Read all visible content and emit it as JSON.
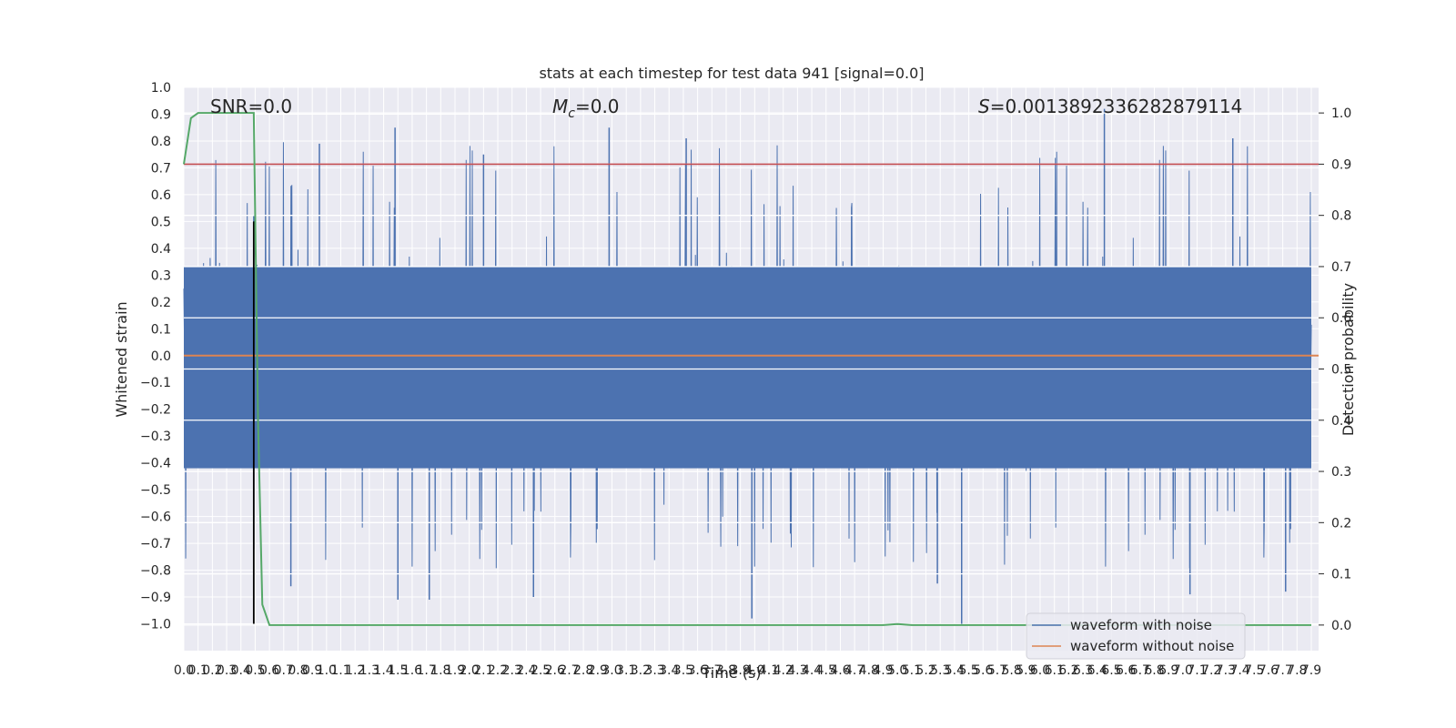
{
  "chart_data": {
    "type": "line",
    "title": "stats at each timestep for test data 941 [signal=0.0]",
    "xlabel": "Time (s)",
    "ylabel_left": "Whitened strain",
    "ylabel_right": "Detection probability",
    "annotations": {
      "snr": "SNR=0.0",
      "mc_symbol": "M",
      "mc_sub": "c",
      "mc_value": "=0.0",
      "s_symbol": "S",
      "s_value": "=0.0013892336282879114"
    },
    "xlim": [
      0.0,
      7.9
    ],
    "ylim_left": [
      -1.1,
      1.0
    ],
    "ylim_right": [
      -0.05,
      1.05
    ],
    "x_ticks": [
      0.0,
      0.1,
      0.2,
      0.3,
      0.4,
      0.5,
      0.6,
      0.7,
      0.8,
      0.9,
      1.0,
      1.1,
      1.2,
      1.3,
      1.4,
      1.5,
      1.6,
      1.7,
      1.8,
      1.9,
      2.0,
      2.1,
      2.2,
      2.3,
      2.4,
      2.5,
      2.6,
      2.7,
      2.8,
      2.9,
      3.0,
      3.1,
      3.2,
      3.3,
      3.4,
      3.5,
      3.6,
      3.7,
      3.8,
      3.9,
      4.0,
      4.1,
      4.2,
      4.3,
      4.4,
      4.5,
      4.6,
      4.7,
      4.8,
      4.9,
      5.0,
      5.1,
      5.2,
      5.3,
      5.4,
      5.5,
      5.6,
      5.7,
      5.8,
      5.9,
      6.0,
      6.1,
      6.2,
      6.3,
      6.4,
      6.5,
      6.6,
      6.7,
      6.8,
      6.9,
      7.0,
      7.1,
      7.2,
      7.3,
      7.4,
      7.5,
      7.6,
      7.7,
      7.8,
      7.9
    ],
    "y_ticks_left": [
      "1.0",
      "0.9",
      "0.8",
      "0.7",
      "0.6",
      "0.5",
      "0.4",
      "0.3",
      "0.2",
      "0.1",
      "0.0",
      "−0.1",
      "−0.2",
      "−0.3",
      "−0.4",
      "−0.5",
      "−0.6",
      "−0.7",
      "−0.8",
      "−0.9",
      "−1.0"
    ],
    "y_ticks_right": [
      "1.0",
      "0.9",
      "0.8",
      "0.7",
      "0.6",
      "0.5",
      "0.4",
      "0.3",
      "0.2",
      "0.1",
      "0.0"
    ],
    "threshold": {
      "axis": "right",
      "value": 0.9
    },
    "marker_line": {
      "x": 0.49,
      "y_from": -1.0,
      "y_to": 0.5
    },
    "grid": true,
    "legend": {
      "position": "bottom-right",
      "entries": [
        "waveform with noise",
        "waveform without noise"
      ]
    },
    "series": [
      {
        "name": "waveform with noise",
        "axis": "left",
        "style": "noise",
        "amplitude_envelope": [
          0.45,
          0.45
        ],
        "peak_values": [
          {
            "x": 0.49,
            "y": 0.52
          },
          {
            "x": 0.49,
            "y": -0.72
          },
          {
            "x": 0.75,
            "y": -0.86
          },
          {
            "x": 0.95,
            "y": 0.79
          },
          {
            "x": 1.2,
            "y": 0.11
          },
          {
            "x": 1.48,
            "y": 0.85
          },
          {
            "x": 1.5,
            "y": -0.91
          },
          {
            "x": 1.72,
            "y": -0.91
          },
          {
            "x": 2.1,
            "y": 0.75
          },
          {
            "x": 2.45,
            "y": -0.9
          },
          {
            "x": 2.98,
            "y": 0.85
          },
          {
            "x": 3.52,
            "y": 0.81
          },
          {
            "x": 3.98,
            "y": -0.98
          },
          {
            "x": 5.28,
            "y": -0.85
          },
          {
            "x": 5.45,
            "y": -1.0
          },
          {
            "x": 6.45,
            "y": 0.92
          },
          {
            "x": 7.05,
            "y": -0.89
          },
          {
            "x": 7.35,
            "y": 0.81
          },
          {
            "x": 7.72,
            "y": -0.88
          }
        ]
      },
      {
        "name": "waveform without noise",
        "axis": "left",
        "x": [
          0.0,
          7.9
        ],
        "y": [
          0.0,
          0.0
        ]
      },
      {
        "axis": "right",
        "x": [
          0.0,
          0.05,
          0.1,
          0.49,
          0.52,
          0.55,
          0.6,
          0.7,
          4.9,
          5.0,
          5.1,
          7.9
        ],
        "y": [
          0.9,
          0.99,
          1.0,
          1.0,
          0.4,
          0.04,
          0.0,
          0.0,
          0.0,
          0.002,
          0.0,
          0.0
        ]
      }
    ],
    "colors": {
      "noise": "#4C72B0",
      "clean": "#DD8452",
      "probability": "#55A868",
      "threshold": "#C44E52",
      "marker": "#000000",
      "axes_bg": "#EAEAF2",
      "grid": "#FFFFFF"
    }
  }
}
